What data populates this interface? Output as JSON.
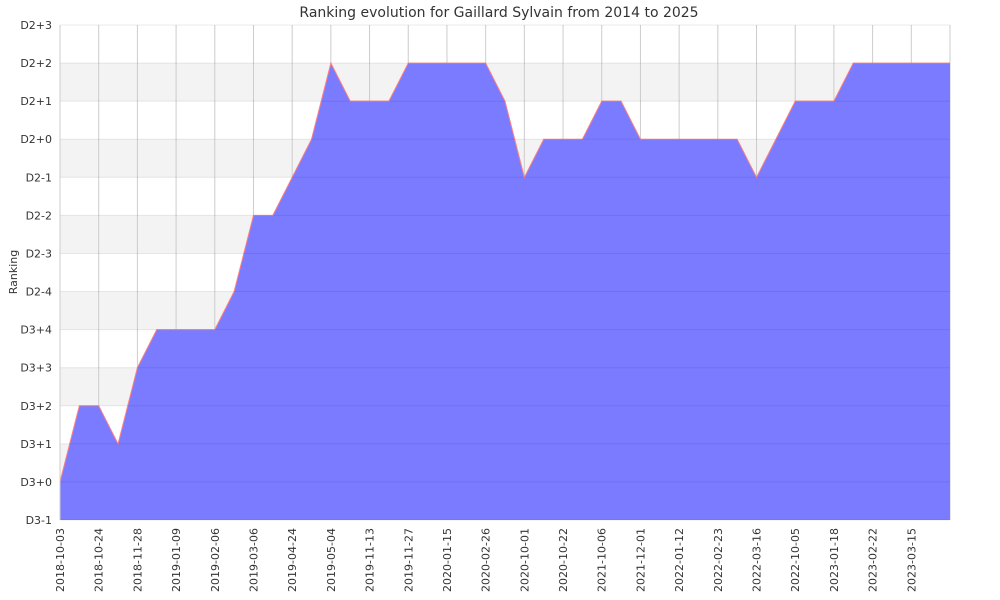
{
  "chart_data": {
    "type": "area",
    "title": "Ranking evolution for Gaillard Sylvain from 2014 to 2025",
    "xlabel": "",
    "ylabel": "Ranking",
    "y_levels": [
      "D3-1",
      "D3+0",
      "D3+1",
      "D3+2",
      "D3+3",
      "D3+4",
      "D2-4",
      "D2-3",
      "D2-2",
      "D2-1",
      "D2+0",
      "D2+1",
      "D2+2",
      "D2+3"
    ],
    "x_tick_labels": [
      "2018-10-03",
      "2018-10-24",
      "2018-11-28",
      "2019-01-09",
      "2019-02-06",
      "2019-03-06",
      "2019-04-24",
      "2019-05-04",
      "2019-11-13",
      "2019-11-27",
      "2020-01-15",
      "2020-02-26",
      "2020-10-01",
      "2020-10-22",
      "2021-10-06",
      "2021-12-01",
      "2022-01-12",
      "2022-02-23",
      "2022-03-16",
      "2022-10-05",
      "2023-01-18",
      "2023-02-22",
      "2023-03-15"
    ],
    "series": [
      {
        "values": [
          "D3+0",
          "D3+2",
          "D3+2",
          "D3+1",
          "D3+3",
          "D3+4",
          "D3+4",
          "D3+4",
          "D3+4",
          "D2-4",
          "D2-2",
          "D2-2",
          "D2-1",
          "D2+0",
          "D2+2",
          "D2+1",
          "D2+1",
          "D2+1",
          "D2+2",
          "D2+2",
          "D2+2",
          "D2+2",
          "D2+2",
          "D2+1",
          "D2-1",
          "D2+0",
          "D2+0",
          "D2+0",
          "D2+1",
          "D2+1",
          "D2+0",
          "D2+0",
          "D2+0",
          "D2+0",
          "D2+0",
          "D2+0",
          "D2-1",
          "D2+0",
          "D2+1",
          "D2+1",
          "D2+1",
          "D2+2",
          "D2+2",
          "D2+2",
          "D2+2",
          "D2+2",
          "D2+2"
        ]
      }
    ],
    "grid": true,
    "colors": {
      "fill": "#7b7bff",
      "line": "#ff8080",
      "band": "#f3f3f3",
      "grid": "#cccccc"
    }
  }
}
